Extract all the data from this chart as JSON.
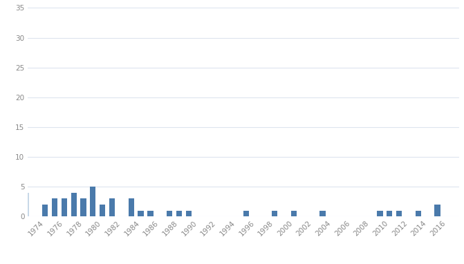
{
  "years": [
    1974,
    1975,
    1976,
    1977,
    1978,
    1979,
    1980,
    1981,
    1982,
    1983,
    1984,
    1985,
    1986,
    1987,
    1988,
    1989,
    1990,
    1991,
    1992,
    1993,
    1994,
    1995,
    1996,
    1997,
    1998,
    1999,
    2000,
    2001,
    2002,
    2003,
    2004,
    2005,
    2006,
    2007,
    2008,
    2009,
    2010,
    2011,
    2012,
    2013,
    2014,
    2015,
    2016
  ],
  "values": [
    2,
    3,
    3,
    4,
    3,
    5,
    2,
    3,
    0,
    3,
    1,
    1,
    0,
    1,
    1,
    1,
    0,
    0,
    0,
    0,
    0,
    1,
    0,
    0,
    1,
    0,
    1,
    0,
    0,
    1,
    0,
    0,
    0,
    0,
    0,
    1,
    1,
    1,
    0,
    1,
    0,
    2,
    0
  ],
  "bar_color": "#4a7aab",
  "first_bar_color": "#c8d8e8",
  "ylim": [
    0,
    35
  ],
  "yticks": [
    0,
    5,
    10,
    15,
    20,
    25,
    30,
    35
  ],
  "xtick_years": [
    1974,
    1976,
    1978,
    1980,
    1982,
    1984,
    1986,
    1988,
    1990,
    1992,
    1994,
    1996,
    1998,
    2000,
    2002,
    2004,
    2006,
    2008,
    2010,
    2012,
    2014,
    2016
  ],
  "background_color": "#ffffff",
  "grid_color": "#dde4ee",
  "extra_bar_year": 1972,
  "extra_bar_value": 4,
  "tick_fontsize": 7.5,
  "bar_width": 0.6
}
